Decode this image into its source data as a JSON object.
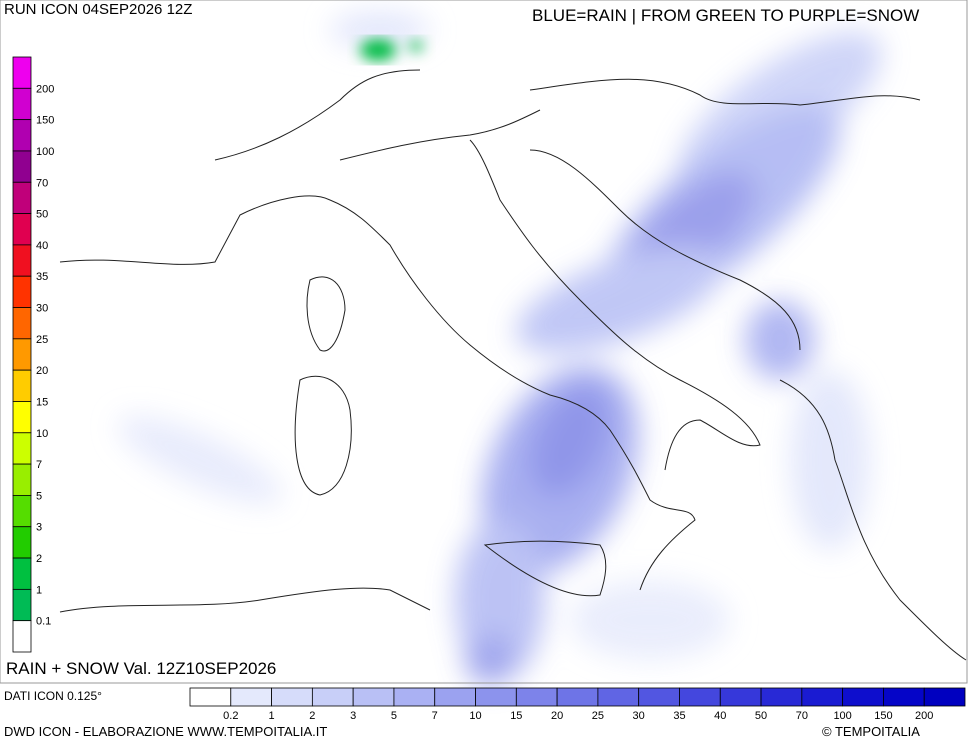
{
  "header": {
    "run": "RUN ICON 04SEP2026 12Z",
    "legend_note": "BLUE=RAIN | FROM GREEN TO PURPLE=SNOW",
    "valid": "RAIN + SNOW Val. 12Z10SEP2026"
  },
  "snow_scale": {
    "labels": [
      "200",
      "150",
      "100",
      "70",
      "50",
      "40",
      "35",
      "30",
      "25",
      "20",
      "15",
      "10",
      "7",
      "5",
      "3",
      "2",
      "1",
      "0.1"
    ],
    "colors": [
      "#ee00ee",
      "#d000d0",
      "#b000b0",
      "#900090",
      "#c0007a",
      "#e00050",
      "#f01020",
      "#ff3300",
      "#ff6600",
      "#ff9900",
      "#ffcc00",
      "#ffff00",
      "#ccff00",
      "#99ee00",
      "#55dd00",
      "#22cc00",
      "#00c040",
      "#00bb55",
      "#ffffff"
    ]
  },
  "rain_scale": {
    "labels": [
      "0.2",
      "1",
      "2",
      "3",
      "5",
      "7",
      "10",
      "15",
      "20",
      "25",
      "30",
      "35",
      "40",
      "50",
      "70",
      "100",
      "150",
      "200"
    ],
    "colors": [
      "#ffffff",
      "#e4e9fc",
      "#d6dcfa",
      "#c8cff8",
      "#b9c0f5",
      "#aab1f3",
      "#9ba2f0",
      "#8c93ed",
      "#7d83ea",
      "#6e74e7",
      "#6065e4",
      "#5256e1",
      "#4447de",
      "#3638da",
      "#2829d6",
      "#1a1bd2",
      "#0e0ecd",
      "#0505c8",
      "#0000c0"
    ]
  },
  "footer": {
    "data_source": "DATI ICON 0.125°",
    "credit": "DWD ICON - ELABORAZIONE WWW.TEMPOITALIA.IT",
    "copyright": "© TEMPOITALIA"
  }
}
